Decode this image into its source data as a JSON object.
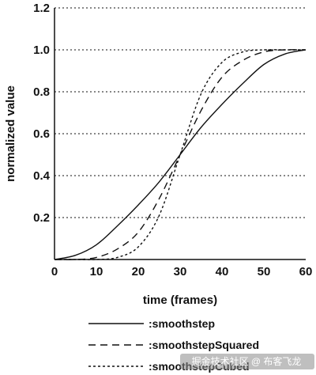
{
  "chart_data": {
    "type": "line",
    "xlabel": "time (frames)",
    "ylabel": "normalized value",
    "xlim": [
      0,
      60
    ],
    "ylim": [
      0,
      1.2
    ],
    "x_ticks": [
      0,
      10,
      20,
      30,
      40,
      50,
      60
    ],
    "y_ticks": [
      0.2,
      0.4,
      0.6,
      0.8,
      1.0,
      1.2
    ],
    "x_tick_labels": [
      "0",
      "10",
      "20",
      "30",
      "40",
      "50",
      "60"
    ],
    "y_tick_labels": [
      "0.2",
      "0.4",
      "0.6",
      "0.8",
      "1.0",
      "1.2"
    ],
    "horizontal_gridlines": "dotted",
    "legend_position": "bottom",
    "series": [
      {
        "name": ":smoothstep",
        "style": "solid",
        "x": [
          0,
          5,
          10,
          15,
          20,
          25,
          30,
          35,
          40,
          45,
          50,
          55,
          60
        ],
        "y": [
          0,
          0.02,
          0.07,
          0.16,
          0.26,
          0.37,
          0.5,
          0.63,
          0.74,
          0.84,
          0.93,
          0.98,
          1
        ]
      },
      {
        "name": ":smoothstepSquared",
        "style": "dashed",
        "x": [
          0,
          5,
          10,
          15,
          20,
          25,
          30,
          35,
          40,
          45,
          50,
          55,
          60
        ],
        "y": [
          0,
          0,
          0.01,
          0.05,
          0.13,
          0.29,
          0.5,
          0.71,
          0.87,
          0.95,
          0.99,
          1,
          1
        ]
      },
      {
        "name": ":smoothstepCubed",
        "style": "dotted",
        "x": [
          0,
          5,
          10,
          15,
          20,
          25,
          30,
          35,
          40,
          45,
          50,
          55,
          60
        ],
        "y": [
          0,
          0,
          0,
          0.01,
          0.06,
          0.21,
          0.5,
          0.79,
          0.94,
          0.99,
          1,
          1,
          1
        ]
      }
    ]
  },
  "watermark": {
    "text": "掘金技术社区 @ 布客飞龙"
  }
}
